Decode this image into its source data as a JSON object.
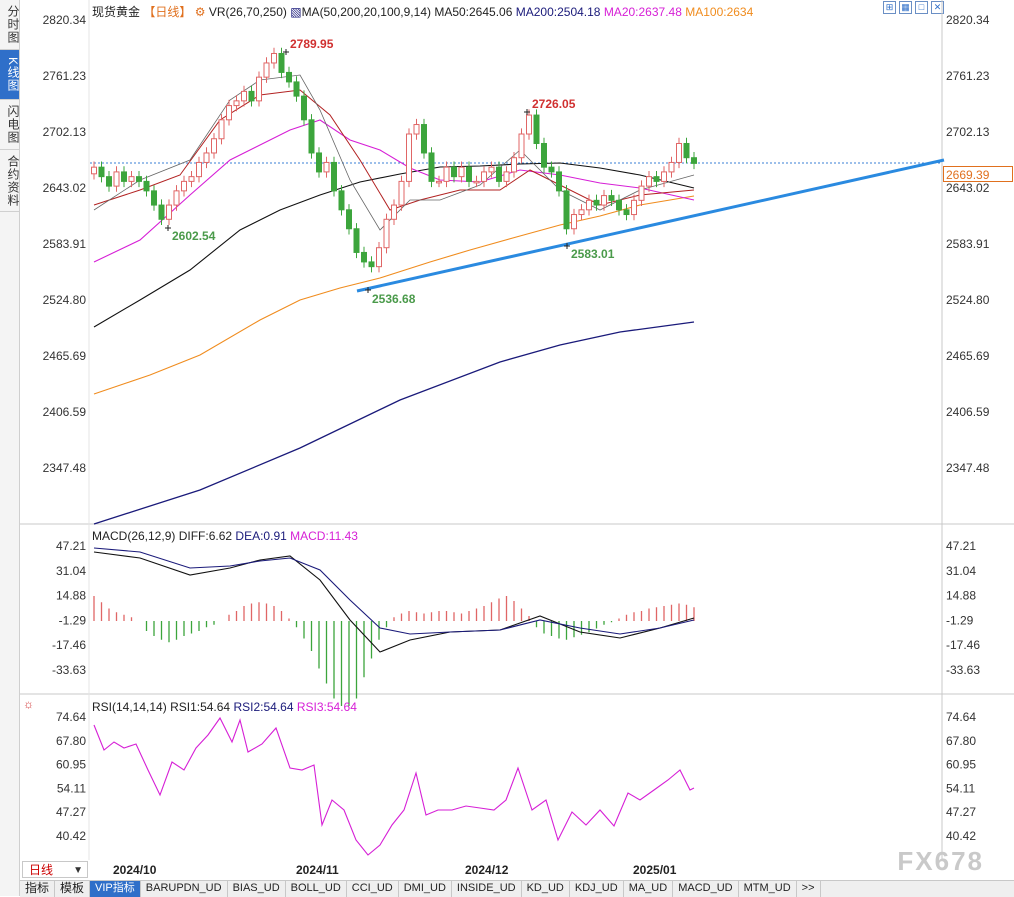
{
  "side_tabs": [
    "分时图",
    "K线图",
    "闪电图",
    "合约资料"
  ],
  "side_active": 1,
  "header": {
    "instrument": "现货黄金",
    "period_tag": "【日线】",
    "vr": "VR(26,70,250)",
    "ma_label": "MA(50,200,20,100,9,14)",
    "ma50": "MA50:2645.06",
    "ma200": "MA200:2504.18",
    "ma20": "MA20:2637.48",
    "ma100": "MA100:2634"
  },
  "window_icons": [
    "restore-icon",
    "grid-icon",
    "maximize-icon",
    "close-icon"
  ],
  "price_axis": [
    "2820.34",
    "2761.23",
    "2702.13",
    "2643.02",
    "2583.91",
    "2524.80",
    "2465.69",
    "2406.59",
    "2347.48"
  ],
  "current_price": "2669.39",
  "annotations": {
    "high1": "2789.95",
    "high2": "2726.05",
    "low1": "2602.54",
    "low2": "2536.68",
    "low3": "2583.01"
  },
  "macd": {
    "label": "MACD(26,12,9)",
    "diff": "DIFF:6.62",
    "dea": "DEA:0.91",
    "macd": "MACD:11.43",
    "axis": [
      "47.21",
      "31.04",
      "14.88",
      "-1.29",
      "-17.46",
      "-33.63"
    ]
  },
  "rsi": {
    "label": "RSI(14,14,14)",
    "rsi1": "RSI1:54.64",
    "rsi2": "RSI2:54.64",
    "rsi3": "RSI3:54.64",
    "axis": [
      "74.64",
      "67.80",
      "60.95",
      "54.11",
      "47.27",
      "40.42"
    ]
  },
  "date_axis": [
    "2024/10",
    "2024/11",
    "2024/12",
    "2025/01"
  ],
  "period_select": "日线",
  "bottom_tabs": [
    "指标",
    "模板",
    "VIP指标",
    "BARUPDN_UD",
    "BIAS_UD",
    "BOLL_UD",
    "CCI_UD",
    "DMI_UD",
    "INSIDE_UD",
    "KD_UD",
    "KDJ_UD",
    "MA_UD",
    "MACD_UD",
    "MTM_UD",
    ">>"
  ],
  "bottom_active": 2,
  "watermark": "FX678",
  "colors": {
    "up": "#e06666",
    "down": "#3ca53c",
    "trend": "#2a8ae0",
    "ma200": "#1a1a7a",
    "ma50": "#111111",
    "ma100": "#f08c1e",
    "ma20": "#d61fd6",
    "ma9": "#b22222"
  }
}
